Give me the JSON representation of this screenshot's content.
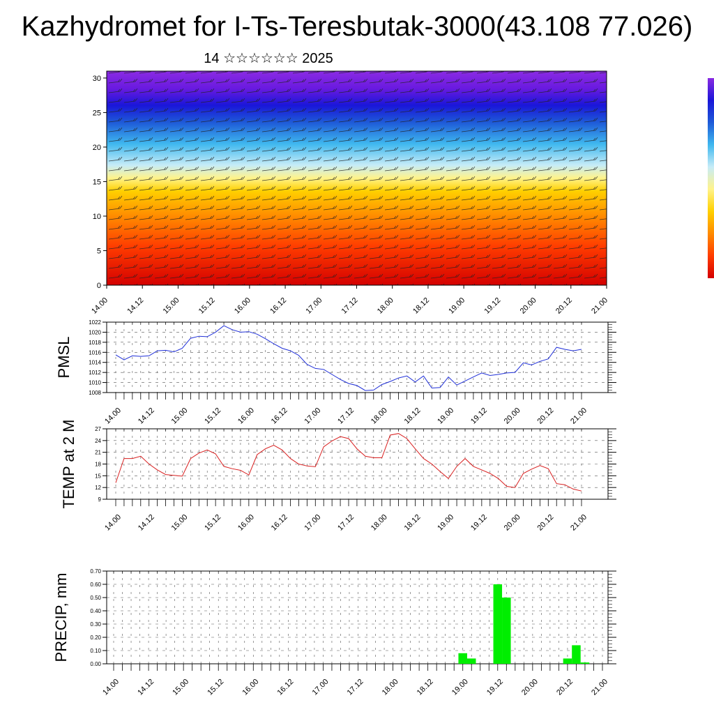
{
  "header": {
    "title": "Kazhydromet for I-Ts-Teresbutak-3000(43.108 77.026)",
    "subtitle": "14 ☆☆☆☆☆☆ 2025"
  },
  "time_labels": [
    "14.00",
    "14.12",
    "15.00",
    "15.12",
    "16.00",
    "16.12",
    "17.00",
    "17.12",
    "18.00",
    "18.12",
    "19.00",
    "19.12",
    "20.00",
    "20.12",
    "21.00"
  ],
  "colors": {
    "pmsl_line": "#1f2fd8",
    "temp_line": "#d81f1f",
    "precip_bar": "#00ee00",
    "grid": "#555555"
  },
  "chart_data": [
    {
      "id": "cross_section",
      "type": "heatmap",
      "title": "",
      "xlabel": "",
      "ylabel": "",
      "x_ticks": [
        "14.00",
        "14.12",
        "15.00",
        "15.12",
        "16.00",
        "16.12",
        "17.00",
        "17.12",
        "18.00",
        "18.12",
        "19.00",
        "19.12",
        "20.00",
        "20.12",
        "21.00"
      ],
      "y_ticks": [
        "0",
        "5",
        "10",
        "15",
        "20",
        "25",
        "30"
      ],
      "ylim": [
        0,
        31
      ],
      "colormap": [
        "#d40000",
        "#ff3c00",
        "#ff8a00",
        "#ffd000",
        "#fff38a",
        "#c7ecf7",
        "#3fb8ef",
        "#1e5bd8",
        "#1a16d9",
        "#6a1ae0",
        "#8a2be2"
      ],
      "colorbar_stops": [
        "#d40000",
        "#ff3c00",
        "#ff8a00",
        "#ffd000",
        "#fff38a",
        "#c7ecf7",
        "#3fb8ef",
        "#1e5bd8",
        "#1a16d9",
        "#8a2be2"
      ]
    },
    {
      "id": "pmsl",
      "type": "line",
      "ylabel": "PMSL",
      "ylim": [
        1008,
        1022
      ],
      "y_ticks": [
        "1008",
        "1010",
        "1012",
        "1014",
        "1016",
        "1018",
        "1020",
        "1022"
      ],
      "x_ticks": [
        "14.00",
        "14.12",
        "15.00",
        "15.12",
        "16.00",
        "16.12",
        "17.00",
        "17.12",
        "18.00",
        "18.12",
        "19.00",
        "19.12",
        "20.00",
        "20.12",
        "21.00"
      ],
      "grid": true,
      "series": [
        {
          "values": [
            1015.5,
            1014.5,
            1015.3,
            1015.2,
            1015.3,
            1016.3,
            1016.4,
            1016.1,
            1016.8,
            1018.8,
            1019.2,
            1019.1,
            1020.0,
            1021.3,
            1020.5,
            1020.0,
            1020.1,
            1019.6,
            1018.7,
            1017.7,
            1016.8,
            1016.3,
            1015.4,
            1013.6,
            1012.8,
            1012.6,
            1011.6,
            1010.6,
            1009.8,
            1009.4,
            1008.4,
            1008.5,
            1009.6,
            1010.2,
            1010.9,
            1011.3,
            1010.1,
            1011.3,
            1008.9,
            1009.0,
            1011.1,
            1009.5,
            1010.3,
            1011.1,
            1011.9,
            1011.4,
            1011.6,
            1011.9,
            1012.0,
            1013.9,
            1013.5,
            1014.2,
            1014.7,
            1017.0,
            1016.6,
            1016.3,
            1016.6
          ]
        }
      ]
    },
    {
      "id": "temp",
      "type": "line",
      "ylabel": "TEMP at 2 M",
      "ylim": [
        9,
        27
      ],
      "y_ticks": [
        "9",
        "12",
        "15",
        "18",
        "21",
        "24",
        "27"
      ],
      "x_ticks": [
        "14.00",
        "14.12",
        "15.00",
        "15.12",
        "16.00",
        "16.12",
        "17.00",
        "17.12",
        "18.00",
        "18.12",
        "19.00",
        "19.12",
        "20.00",
        "20.12",
        "21.00"
      ],
      "grid": true,
      "series": [
        {
          "values": [
            13.2,
            19.4,
            19.4,
            20.0,
            18.0,
            16.5,
            15.3,
            15.1,
            14.9,
            19.4,
            20.8,
            21.6,
            20.6,
            17.4,
            16.8,
            16.4,
            15.2,
            20.4,
            21.9,
            22.8,
            21.6,
            19.4,
            18.0,
            17.5,
            17.3,
            22.4,
            23.9,
            25.0,
            24.5,
            21.9,
            20.0,
            19.6,
            19.6,
            25.4,
            25.8,
            24.5,
            21.9,
            19.4,
            18.0,
            16.1,
            14.3,
            17.4,
            19.4,
            17.4,
            16.5,
            15.6,
            14.3,
            12.3,
            12.0,
            15.6,
            16.7,
            17.6,
            16.8,
            13.0,
            12.7,
            11.6,
            11.1
          ]
        }
      ]
    },
    {
      "id": "precip",
      "type": "bar",
      "ylabel": "PRECIP, mm",
      "ylim": [
        0,
        0.7
      ],
      "y_ticks": [
        "0.00",
        "0.10",
        "0.20",
        "0.30",
        "0.40",
        "0.50",
        "0.60",
        "0.70"
      ],
      "x_ticks": [
        "14.00",
        "14.12",
        "15.00",
        "15.12",
        "16.00",
        "16.12",
        "17.00",
        "17.12",
        "18.00",
        "18.12",
        "19.00",
        "19.12",
        "20.00",
        "20.12",
        "21.00"
      ],
      "grid": true,
      "series": [
        {
          "values": [
            0,
            0,
            0,
            0,
            0,
            0,
            0,
            0,
            0,
            0,
            0,
            0,
            0,
            0,
            0,
            0,
            0,
            0,
            0,
            0,
            0,
            0,
            0,
            0,
            0,
            0,
            0,
            0,
            0,
            0,
            0,
            0,
            0,
            0,
            0,
            0,
            0,
            0,
            0,
            0,
            0.08,
            0.04,
            0,
            0,
            0.6,
            0.5,
            0,
            0,
            0,
            0,
            0,
            0,
            0.04,
            0.14,
            0.01,
            0,
            0
          ]
        }
      ]
    }
  ]
}
